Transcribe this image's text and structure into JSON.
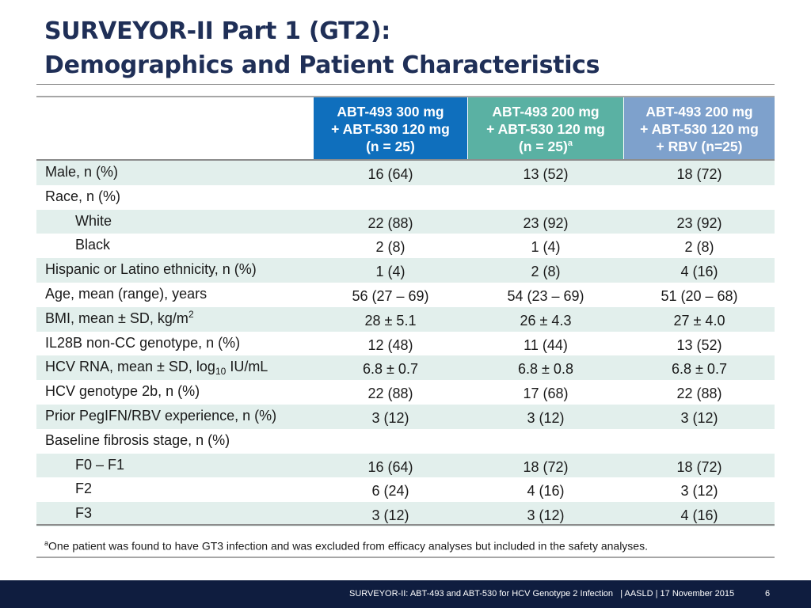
{
  "title": {
    "line1": "SURVEYOR-II Part 1 (GT2):",
    "line2": "Demographics and Patient Characteristics"
  },
  "columns": [
    {
      "line1": "ABT-493 300 mg",
      "line2": "+ ABT-530 120 mg",
      "line3": "(n = 25)",
      "sup": "",
      "color": "#0f6fbd"
    },
    {
      "line1": "ABT-493 200 mg",
      "line2": "+ ABT-530 120 mg",
      "line3": "(n = 25)",
      "sup": "a",
      "color": "#5ab1a3"
    },
    {
      "line1": "ABT-493 200 mg",
      "line2": "+ ABT-530 120 mg",
      "line3": "+ RBV (n=25)",
      "sup": "",
      "color": "#7ea1cc"
    }
  ],
  "rows": [
    {
      "label": "Male, n (%)",
      "values": [
        "16 (64)",
        "13 (52)",
        "18 (72)"
      ]
    },
    {
      "label": "Race, n (%)",
      "values": [
        "",
        "",
        ""
      ]
    },
    {
      "label": "White",
      "values": [
        "22 (88)",
        "23 (92)",
        "23 (92)"
      ]
    },
    {
      "label": "Black",
      "values": [
        "2 (8)",
        "1 (4)",
        "2 (8)"
      ]
    },
    {
      "label": "Hispanic or Latino ethnicity, n (%)",
      "values": [
        "1 (4)",
        "2 (8)",
        "4 (16)"
      ]
    },
    {
      "label": "Age, mean (range), years",
      "values": [
        "56 (27 – 69)",
        "54 (23 – 69)",
        "51 (20 – 68)"
      ]
    },
    {
      "label_pre": "BMI, mean ± SD, kg/m",
      "label_sup": "2",
      "label_post": "",
      "values": [
        "28 ± 5.1",
        "26 ± 4.3",
        "27 ± 4.0"
      ]
    },
    {
      "label": "IL28B non-CC genotype, n (%)",
      "values": [
        "12 (48)",
        "11 (44)",
        "13 (52)"
      ]
    },
    {
      "label_pre": "HCV RNA, mean ± SD, log",
      "label_sub": "10",
      "label_post": " IU/mL",
      "values": [
        "6.8 ± 0.7",
        "6.8 ± 0.8",
        "6.8 ± 0.7"
      ]
    },
    {
      "label": "HCV genotype 2b, n (%)",
      "values": [
        "22 (88)",
        "17 (68)",
        "22 (88)"
      ]
    },
    {
      "label": "Prior PegIFN/RBV experience, n (%)",
      "values": [
        "3 (12)",
        "3 (12)",
        "3 (12)"
      ]
    },
    {
      "label": "Baseline fibrosis stage, n (%)",
      "values": [
        "",
        "",
        ""
      ]
    },
    {
      "label": "F0 – F1",
      "values": [
        "16 (64)",
        "18 (72)",
        "18 (72)"
      ]
    },
    {
      "label": "F2",
      "values": [
        "6 (24)",
        "4 (16)",
        "3 (12)"
      ]
    },
    {
      "label": "F3",
      "values": [
        "3 (12)",
        "3 (12)",
        "4 (16)"
      ]
    }
  ],
  "footnote": {
    "marker": "a",
    "text": "One patient was found to have GT3 infection and was excluded from efficacy analyses but included in the safety analyses."
  },
  "footer": {
    "text": "SURVEYOR-II: ABT-493 and ABT-530 for HCV Genotype 2 Infection   | AASLD | 17 November 2015",
    "page": "6"
  }
}
